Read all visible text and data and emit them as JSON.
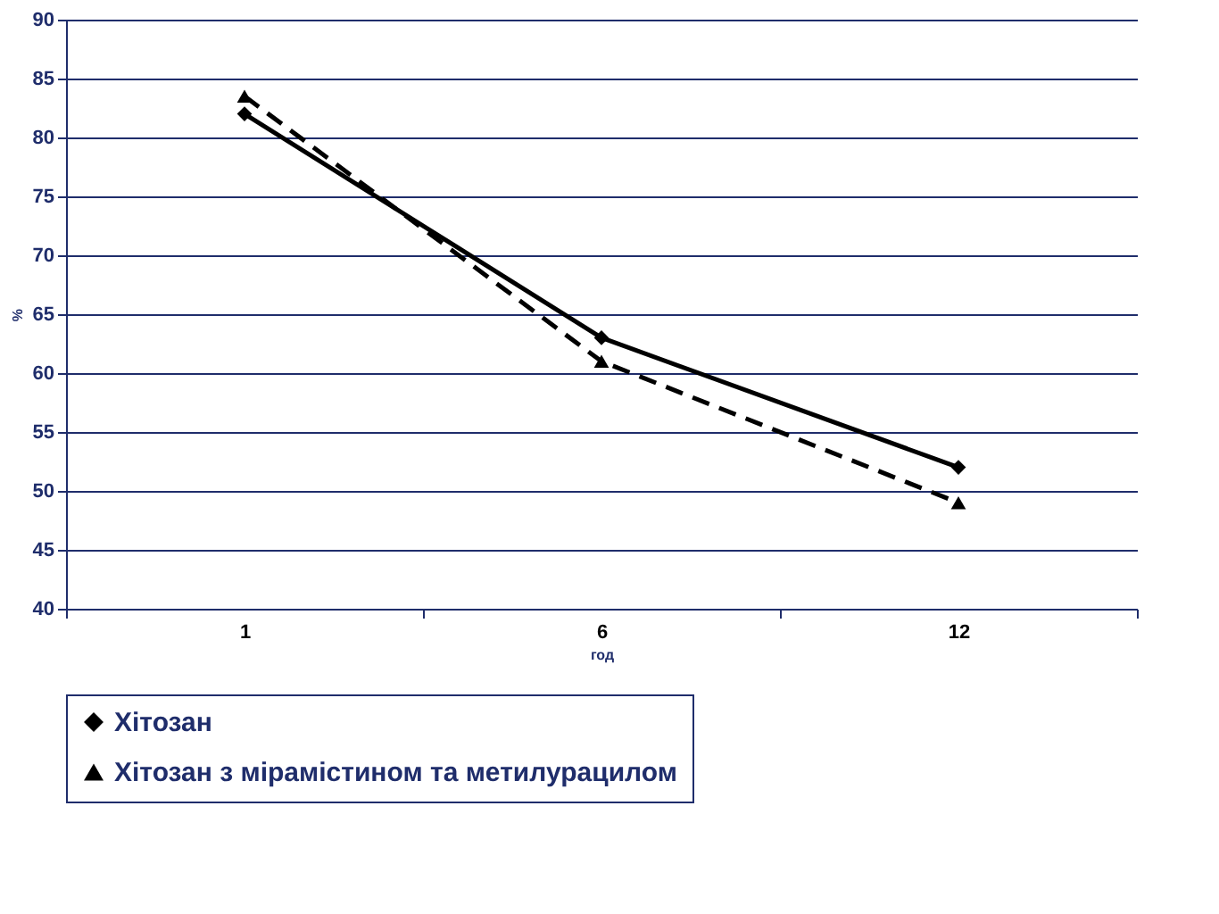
{
  "chart_data": {
    "type": "line",
    "xlabel": "год",
    "ylabel": "%",
    "categories": [
      "1",
      "6",
      "12"
    ],
    "series": [
      {
        "name": "Хітозан",
        "color": "#000000",
        "marker": "diamond",
        "line_style": "solid",
        "values": [
          82,
          63,
          52
        ]
      },
      {
        "name": "Хітозан з мірамістином та метилурацилом",
        "color": "#000000",
        "marker": "triangle",
        "line_style": "dashed",
        "values": [
          83.5,
          61,
          49
        ]
      }
    ],
    "ylim": [
      40,
      90
    ],
    "yticks": [
      40,
      45,
      50,
      55,
      60,
      65,
      70,
      75,
      80,
      85,
      90
    ],
    "grid": "y",
    "legend": "bottom"
  }
}
